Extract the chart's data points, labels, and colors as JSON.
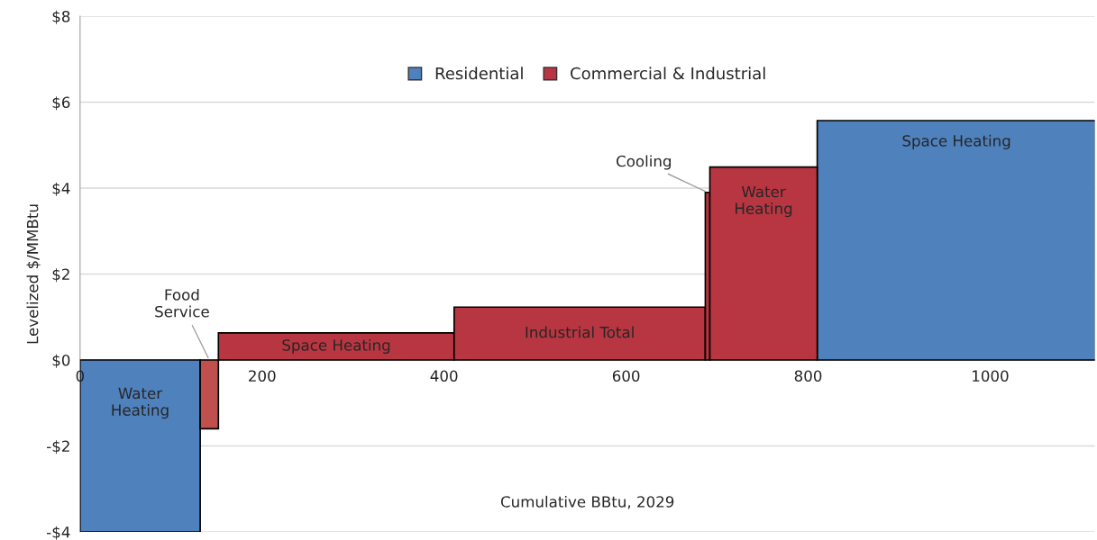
{
  "chart_data": {
    "type": "bar",
    "ylabel": "Levelized $/MMBtu",
    "xlabel": "Cumulative BBtu, 2029",
    "x": [
      66,
      142,
      281.5,
      549,
      689.5,
      751,
      963
    ],
    "series": [
      {
        "name": "Residential",
        "color": "#4f81bd",
        "values": [
          -4,
          null,
          null,
          null,
          null,
          null,
          5.57
        ]
      },
      {
        "name": "Commercial & Industrial",
        "color": "#b83641",
        "colors": [
          null,
          "#c0504d",
          "#b83641",
          "#b83641",
          "#b83641",
          "#b83641",
          null
        ],
        "values": [
          null,
          -1.6,
          0.63,
          1.23,
          3.9,
          4.49,
          null
        ]
      }
    ],
    "xlim": [
      0,
      1115
    ],
    "xticks": [
      0,
      200,
      400,
      600,
      800,
      1000
    ],
    "ylim": [
      -4,
      8
    ],
    "yticks": [
      {
        "value": -4,
        "label": "-$4"
      },
      {
        "value": -2,
        "label": "-$2"
      },
      {
        "value": 0,
        "label": "$0"
      },
      {
        "value": 2,
        "label": "$2"
      },
      {
        "value": 4,
        "label": "$4"
      },
      {
        "value": 6,
        "label": "$6"
      },
      {
        "value": 8,
        "label": "$8"
      }
    ],
    "grid": "y",
    "legend": "top",
    "annotations": [
      "Water\nHeating",
      {
        "text": "Food\nService",
        "x": 142,
        "y": 0
      },
      "Space Heating",
      "Industrial Total",
      {
        "text": "Cooling",
        "x": 689.5,
        "y": 3.9
      },
      "Water\nHeating",
      "Space Heating"
    ]
  }
}
